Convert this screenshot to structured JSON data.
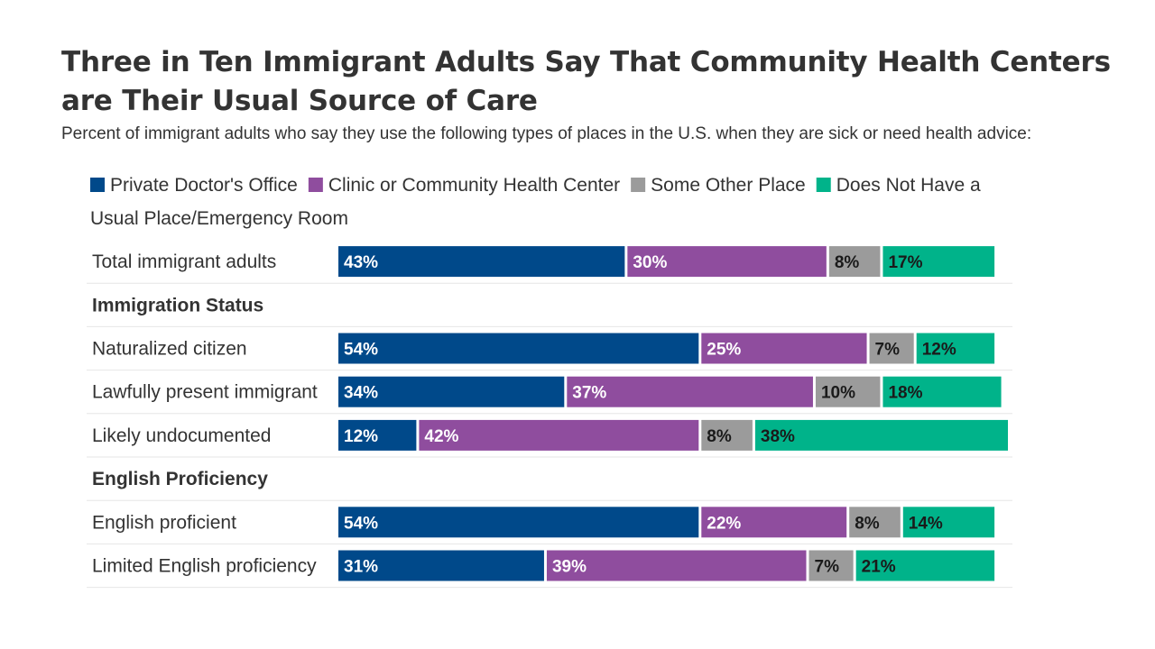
{
  "header": {
    "title": "Three in Ten Immigrant Adults Say That Community Health Centers are Their Usual Source of Care",
    "subtitle": "Percent of immigrant adults who say they use the following types of places in the U.S. when they are sick or need health advice:"
  },
  "chart_data": {
    "type": "bar",
    "orientation": "horizontal",
    "stacked": true,
    "title": "Three in Ten Immigrant Adults Say That Community Health Centers are Their Usual Source of Care",
    "subtitle": "Percent of immigrant adults who say they use the following types of places in the U.S. when they are sick or need health advice:",
    "legend_position": "top-left",
    "grid": false,
    "xlim": [
      0,
      100
    ],
    "series": [
      {
        "name": "Private Doctor's Office",
        "color": "#00498a",
        "text_color": "#ffffff"
      },
      {
        "name": "Clinic or Community Health Center",
        "color": "#8f4d9e",
        "text_color": "#ffffff"
      },
      {
        "name": "Some Other Place",
        "color": "#9b9b9b",
        "text_color": "#1a1a1a"
      },
      {
        "name": "Does Not Have a Usual Place/Emergency Room",
        "color": "#00b38a",
        "text_color": "#1a1a1a"
      }
    ],
    "rows": [
      {
        "label": "Total immigrant adults",
        "type": "data",
        "values": [
          43,
          30,
          8,
          17
        ]
      },
      {
        "label": "Immigration Status",
        "type": "group"
      },
      {
        "label": "Naturalized citizen",
        "type": "data",
        "values": [
          54,
          25,
          7,
          12
        ]
      },
      {
        "label": "Lawfully present immigrant",
        "type": "data",
        "values": [
          34,
          37,
          10,
          18
        ]
      },
      {
        "label": "Likely undocumented",
        "type": "data",
        "values": [
          12,
          42,
          8,
          38
        ]
      },
      {
        "label": "English Proficiency",
        "type": "group"
      },
      {
        "label": "English proficient",
        "type": "data",
        "values": [
          54,
          22,
          8,
          14
        ]
      },
      {
        "label": "Limited English proficiency",
        "type": "data",
        "values": [
          31,
          39,
          7,
          21
        ]
      }
    ]
  }
}
